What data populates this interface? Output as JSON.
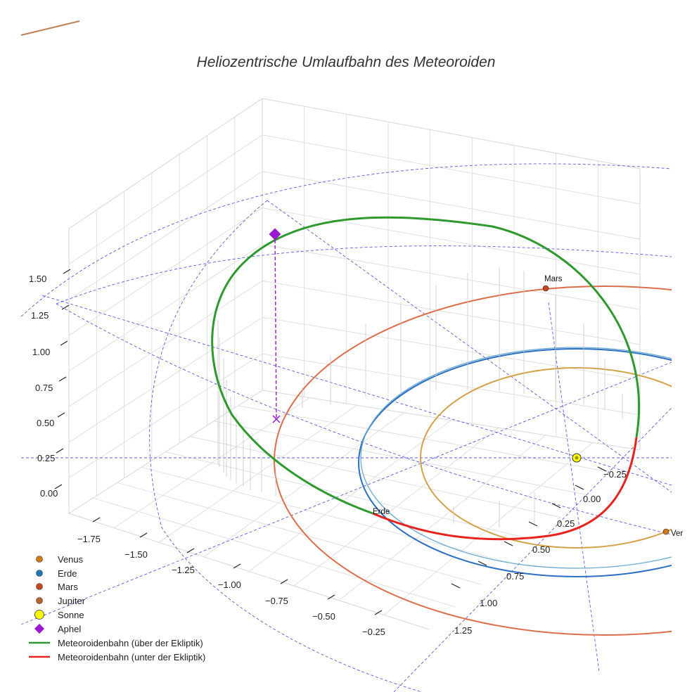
{
  "chart_data": {
    "type": "line3d",
    "title": "Heliozentrische Umlaufbahn des Meteoroiden",
    "axes": {
      "x": {
        "ticks": [
          "−1.75",
          "−1.50",
          "−1.25",
          "−1.00",
          "−0.75",
          "−0.50",
          "−0.25"
        ]
      },
      "y": {
        "ticks": [
          "−0.25",
          "0.00",
          "0.25",
          "0.50",
          "0.75",
          "1.00",
          "1.25"
        ]
      },
      "z": {
        "ticks": [
          "0.00",
          "0.25",
          "0.50",
          "0.75",
          "1.00",
          "1.25",
          "1.50"
        ]
      }
    },
    "planets": [
      {
        "name": "Venus",
        "orbit_radius_au": 0.72,
        "color": "#d4a24a",
        "label": "Ver"
      },
      {
        "name": "Erde",
        "orbit_radius_au": 1.0,
        "color": "#2b6fc4",
        "label": "Erde"
      },
      {
        "name": "Mars",
        "orbit_radius_au": 1.52,
        "color": "#dd6e4a",
        "label": "Mars"
      },
      {
        "name": "Jupiter",
        "orbit_radius_au": 5.2,
        "color": "#c0805a",
        "label": ""
      }
    ],
    "sun": {
      "name": "Sonne",
      "position": [
        0,
        0,
        0
      ],
      "color": "#ffff00"
    },
    "aphel": {
      "name": "Aphel",
      "position_approx": [
        -1.55,
        0.3,
        1.25
      ],
      "color": "#9b19d0"
    },
    "meteoroid_orbit": {
      "above_ecliptic": {
        "name": "Meteoroidenbahn (über der Ekliptik)",
        "color": "#2e9a2e"
      },
      "below_ecliptic": {
        "name": "Meteoroidenbahn (unter der Ekliptik)",
        "color": "#e8231e"
      }
    },
    "legend": {
      "placement": "bottom-left",
      "entries": [
        {
          "label": "Venus",
          "marker": "circle",
          "color": "#d07a1a"
        },
        {
          "label": "Erde",
          "marker": "circle",
          "color": "#1f77b4"
        },
        {
          "label": "Mars",
          "marker": "circle",
          "color": "#c4461c"
        },
        {
          "label": "Jupiter",
          "marker": "circle",
          "color": "#b5622e"
        },
        {
          "label": "Sonne",
          "marker": "circle-large",
          "color": "#ffff00"
        },
        {
          "label": "Aphel",
          "marker": "diamond",
          "color": "#9b19d0"
        },
        {
          "label": "Meteoroidenbahn (über der Ekliptik)",
          "marker": "line",
          "color": "#2e9a2e"
        },
        {
          "label": "Meteoroidenbahn (unter der Ekliptik)",
          "marker": "line",
          "color": "#e8231e"
        }
      ]
    }
  }
}
